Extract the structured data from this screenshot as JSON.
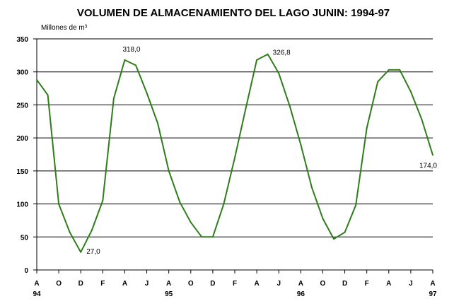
{
  "chart_data": {
    "type": "line",
    "title": "VOLUMEN DE ALMACENAMIENTO DEL LAGO JUNIN: 1994-97",
    "ylabel": "Millones de m³",
    "ylim": [
      0,
      350
    ],
    "yticks": [
      0,
      50,
      100,
      150,
      200,
      250,
      300,
      350
    ],
    "grid": true,
    "legend": "none",
    "line_color": "#2e7d1a",
    "x_tick_labels": [
      "A",
      "O",
      "D",
      "F",
      "A",
      "J",
      "A",
      "O",
      "D",
      "F",
      "A",
      "J",
      "A",
      "O",
      "D",
      "F",
      "A",
      "J",
      "A"
    ],
    "year_labels": [
      {
        "label": "94",
        "tick_index": 0
      },
      {
        "label": "95",
        "tick_index": 6
      },
      {
        "label": "96",
        "tick_index": 12
      },
      {
        "label": "97",
        "tick_index": 18
      }
    ],
    "series": [
      {
        "values": [
          288,
          265,
          100,
          57,
          27,
          60,
          105,
          260,
          318,
          310,
          268,
          222,
          150,
          103,
          72,
          50,
          50,
          100,
          170,
          245,
          318,
          326.8,
          298,
          248,
          190,
          125,
          78,
          47,
          57,
          98,
          215,
          285,
          303,
          303,
          270,
          228,
          174
        ]
      }
    ],
    "annotations": [
      {
        "text": "318,0",
        "index": 8
      },
      {
        "text": "27,0",
        "index": 4
      },
      {
        "text": "326,8",
        "index": 21
      },
      {
        "text": "174,0",
        "index": 36
      }
    ]
  }
}
